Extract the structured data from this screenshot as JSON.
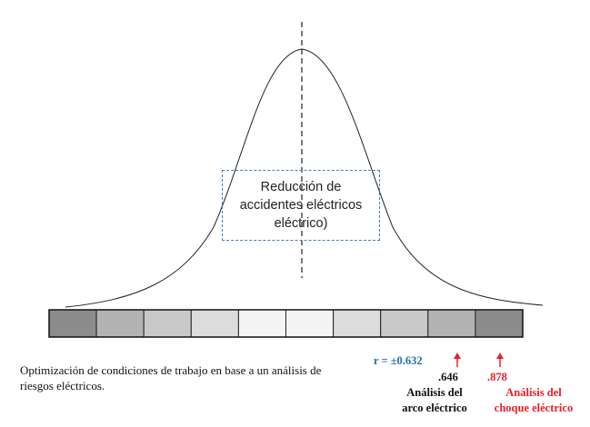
{
  "diagram": {
    "center_box_text": "Reducción de\naccidentes eléctricos\neléctrico)",
    "caption": "Optimización de condiciones de trabajo en base a un análisis de riesgos eléctricos.",
    "r_value": "r = ±0.632",
    "arc": {
      "value": ".646",
      "label": "Análisis del\narco eléctrico"
    },
    "shock": {
      "value": ".878",
      "label": "Análisis del\nchoque eléctrico"
    },
    "scale_colors": [
      "#8c8c8c",
      "#b3b3b3",
      "#c9c9c9",
      "#dcdcdc",
      "#f4f4f4",
      "#f4f4f4",
      "#dcdcdc",
      "#c9c9c9",
      "#b3b3b3",
      "#8c8c8c"
    ],
    "colors": {
      "arc_arrow": "#e8202a",
      "shock_arrow": "#e8202a",
      "r_text": "#1f6fb0",
      "box_border": "#4a7fb0"
    }
  }
}
